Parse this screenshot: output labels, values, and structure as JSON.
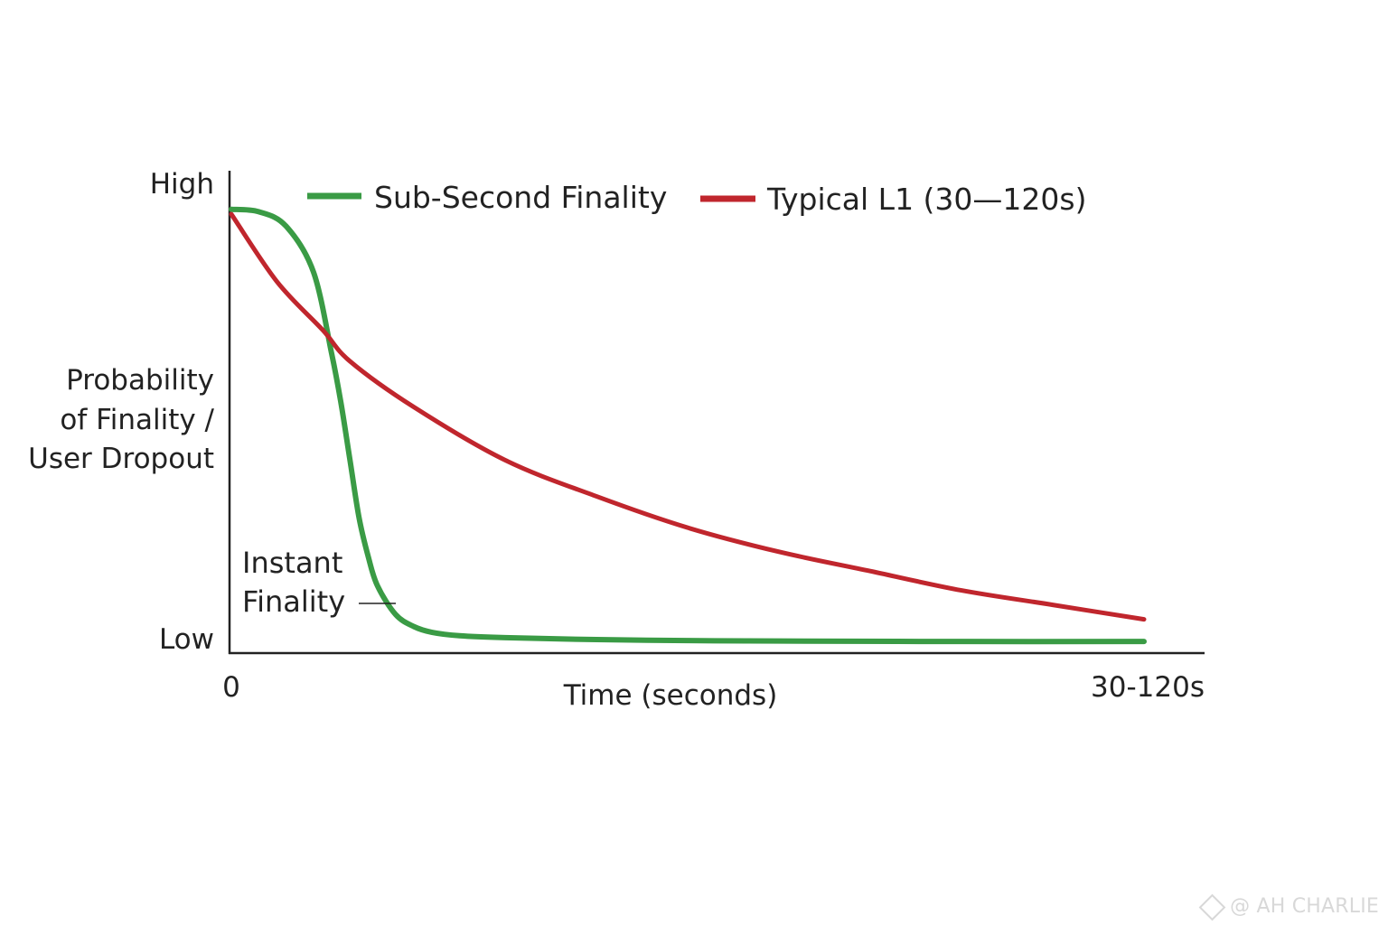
{
  "chart_data": {
    "type": "line",
    "title": "",
    "xlabel": "Time (seconds)",
    "ylabel": [
      "Probability",
      "of Finality /",
      "User Dropout"
    ],
    "x_ticks": [
      "0",
      "30-120s"
    ],
    "y_ticks": [
      "Low",
      "High"
    ],
    "xlim": [
      0,
      100
    ],
    "ylim": [
      0,
      100
    ],
    "grid": false,
    "legend_position": "top",
    "series": [
      {
        "name": "Sub-Second Finality",
        "color": "#3a9b45",
        "x": [
          0,
          3,
          6,
          9,
          11,
          12,
          13,
          14,
          15,
          16,
          18,
          20,
          22,
          25,
          30,
          40,
          50,
          60,
          80,
          100
        ],
        "y": [
          92,
          91.5,
          88.5,
          79,
          62,
          52,
          40,
          28,
          20,
          14,
          8,
          5.5,
          4.3,
          3.6,
          3.2,
          2.8,
          2.6,
          2.5,
          2.4,
          2.4
        ]
      },
      {
        "name": "Typical L1 (30—120s)",
        "color": "#c0262d",
        "x": [
          0,
          5,
          10,
          13,
          20,
          30,
          40,
          50,
          60,
          70,
          80,
          90,
          100
        ],
        "y": [
          91,
          77,
          67,
          60.5,
          51,
          40,
          32.5,
          26,
          21,
          17,
          13,
          10,
          7
        ]
      }
    ],
    "annotations": [
      {
        "text": [
          "Instant",
          "Finality"
        ],
        "x": 14,
        "y": 11
      }
    ]
  },
  "watermark": {
    "text": "@ AH CHARLIE"
  }
}
